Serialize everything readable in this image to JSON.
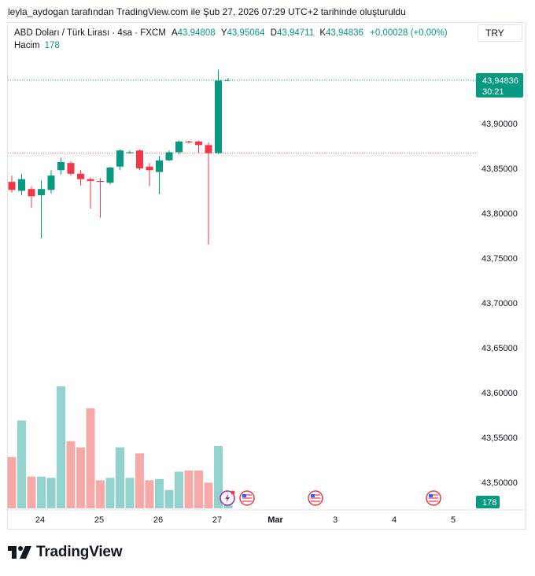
{
  "header": {
    "attribution": "leyla_aydogan tarafından TradingView.com ile Şub 27, 2026 07:29 UTC+2 tarihinde oluşturuldu"
  },
  "legend": {
    "symbol": "ABD Doları / Türk Lirası · 4sa · FXCM",
    "open_label": "A",
    "open_value": "43,94808",
    "high_label": "Y",
    "high_value": "43,95064",
    "low_label": "D",
    "low_value": "43,94711",
    "close_label": "K",
    "close_value": "43,94836",
    "change": "+0,00028 (+0,00%)",
    "volume_label": "Hacim",
    "volume_value": "178"
  },
  "currency_button": "TRY",
  "price_tag": {
    "price": "43,94836",
    "countdown": "30:21"
  },
  "volume_tag": "178",
  "brand": "TradingView",
  "colors": {
    "up": "#089981",
    "down": "#f23645",
    "vol_up": "#92d2cc",
    "vol_down": "#f7a9a7",
    "grid_border": "#e0e3eb",
    "text": "#131722"
  },
  "chart_data": {
    "type": "candlestick",
    "y_ticks": [
      "43,50000",
      "43,55000",
      "43,60000",
      "43,65000",
      "43,70000",
      "43,75000",
      "43,80000",
      "43,85000",
      "43,90000"
    ],
    "y_tick_values": [
      43.5,
      43.55,
      43.6,
      43.65,
      43.7,
      43.75,
      43.8,
      43.85,
      43.9
    ],
    "x_ticks": [
      "24",
      "25",
      "26",
      "27",
      "Mar",
      "3",
      "4",
      "5"
    ],
    "last_price": 43.94836,
    "previous_close_line": 43.867,
    "ylim": [
      43.475,
      43.985
    ],
    "candles": [
      {
        "o": 43.835,
        "h": 43.842,
        "l": 43.823,
        "c": 43.826
      },
      {
        "o": 43.825,
        "h": 43.844,
        "l": 43.82,
        "c": 43.838
      },
      {
        "o": 43.827,
        "h": 43.83,
        "l": 43.806,
        "c": 43.819
      },
      {
        "o": 43.82,
        "h": 43.837,
        "l": 43.772,
        "c": 43.827
      },
      {
        "o": 43.826,
        "h": 43.848,
        "l": 43.822,
        "c": 43.842
      },
      {
        "o": 43.848,
        "h": 43.862,
        "l": 43.843,
        "c": 43.857
      },
      {
        "o": 43.856,
        "h": 43.858,
        "l": 43.842,
        "c": 43.844
      },
      {
        "o": 43.844,
        "h": 43.848,
        "l": 43.831,
        "c": 43.838
      },
      {
        "o": 43.838,
        "h": 43.84,
        "l": 43.805,
        "c": 43.836
      },
      {
        "o": 43.836,
        "h": 43.839,
        "l": 43.795,
        "c": 43.835
      },
      {
        "o": 43.834,
        "h": 43.852,
        "l": 43.832,
        "c": 43.851
      },
      {
        "o": 43.852,
        "h": 43.871,
        "l": 43.848,
        "c": 43.87
      },
      {
        "o": 43.868,
        "h": 43.87,
        "l": 43.866,
        "c": 43.868
      },
      {
        "o": 43.87,
        "h": 43.871,
        "l": 43.848,
        "c": 43.85
      },
      {
        "o": 43.852,
        "h": 43.856,
        "l": 43.83,
        "c": 43.848
      },
      {
        "o": 43.846,
        "h": 43.864,
        "l": 43.821,
        "c": 43.859
      },
      {
        "o": 43.859,
        "h": 43.87,
        "l": 43.858,
        "c": 43.868
      },
      {
        "o": 43.868,
        "h": 43.881,
        "l": 43.866,
        "c": 43.88
      },
      {
        "o": 43.88,
        "h": 43.881,
        "l": 43.878,
        "c": 43.879
      },
      {
        "o": 43.88,
        "h": 43.881,
        "l": 43.867,
        "c": 43.876
      },
      {
        "o": 43.876,
        "h": 43.879,
        "l": 43.765,
        "c": 43.867
      },
      {
        "o": 43.867,
        "h": 43.96,
        "l": 43.866,
        "c": 43.948
      },
      {
        "o": 43.94808,
        "h": 43.95064,
        "l": 43.94711,
        "c": 43.94836
      }
    ],
    "volume": [
      0.42,
      0.72,
      0.26,
      0.26,
      0.25,
      1.0,
      0.55,
      0.5,
      0.82,
      0.23,
      0.25,
      0.5,
      0.25,
      0.45,
      0.23,
      0.24,
      0.15,
      0.3,
      0.31,
      0.31,
      0.21,
      0.51,
      0.1
    ],
    "events": [
      "lightning-event",
      "us-flag-event",
      "us-flag-event",
      "us-flag-event"
    ]
  }
}
